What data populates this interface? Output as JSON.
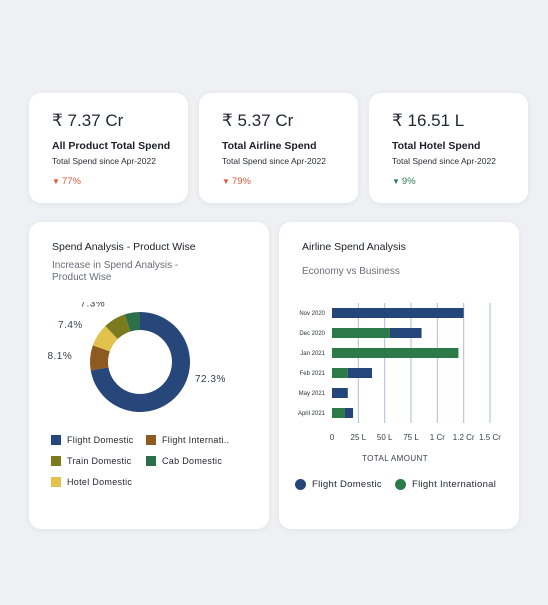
{
  "kpis": [
    {
      "amount": "₹ 7.37 Cr",
      "title": "All Product Total Spend",
      "subtitle": "Total Spend since Apr-2022",
      "delta": "77%",
      "direction": "down"
    },
    {
      "amount": "₹ 5.37 Cr",
      "title": "Total Airline Spend",
      "subtitle": "Total Spend since Apr-2022",
      "delta": "79%",
      "direction": "down"
    },
    {
      "amount": "₹ 16.51 L",
      "title": "Total Hotel Spend",
      "subtitle": "Total Spend since Apr-2022",
      "delta": "9%",
      "direction": "up"
    }
  ],
  "spend_panel": {
    "title": "Spend Analysis - Product Wise",
    "subtitle_line1": "Increase in Spend Analysis -",
    "subtitle_line2": "Product Wise"
  },
  "airline_panel": {
    "title": "Airline Spend Analysis",
    "subtitle": "Economy vs Business"
  },
  "colors": {
    "flight_domestic": "#27467a",
    "flight_international": "#8e5a22",
    "train_domestic": "#7b7a1f",
    "cab_domestic": "#2b7048",
    "hotel_domestic": "#e3c14d",
    "bar_flight_domestic": "#24467a",
    "bar_flight_international": "#2b7a48",
    "delta_down": "#e0573a",
    "delta_up": "#2e7d4f"
  },
  "chart_data": [
    {
      "type": "pie",
      "donut": true,
      "slices": [
        {
          "name": "Flight Domestic",
          "value": 72.3,
          "label": "72.3%",
          "color": "#27467a"
        },
        {
          "name": "Flight Internati..",
          "value": 8.1,
          "label": "8.1%",
          "color": "#8e5a22"
        },
        {
          "name": "Hotel Domestic",
          "value": 7.4,
          "label": "7.4%",
          "color": "#e3c14d"
        },
        {
          "name": "Train Domestic",
          "value": 7.3,
          "label": "7.3%",
          "color": "#7b7a1f"
        },
        {
          "name": "Cab Domestic",
          "value": 4.9,
          "label": "4.9%",
          "color": "#2b7048"
        }
      ],
      "legend": [
        "Flight Domestic",
        "Flight Internati..",
        "Train Domestic",
        "Cab Domestic",
        "Hotel Domestic"
      ],
      "legend_placement": "bottom"
    },
    {
      "type": "bar",
      "orientation": "horizontal",
      "stacked": true,
      "categories": [
        "Nov 2020",
        "Dec 2020",
        "Jan 2021",
        "Feb 2021",
        "May 2021",
        "April 2021"
      ],
      "series": [
        {
          "name": "Flight International",
          "values": [
            0,
            0.55,
            1.2,
            0.15,
            0,
            0.12
          ],
          "color": "#2b7a48"
        },
        {
          "name": "Flight Domestic",
          "values": [
            1.25,
            0.3,
            0,
            0.23,
            0.15,
            0.08
          ],
          "color": "#24467a"
        }
      ],
      "xlabel": "TOTAL AMOUNT",
      "x_ticks": [
        {
          "value": 0,
          "label": "0"
        },
        {
          "value": 0.25,
          "label": "25 L"
        },
        {
          "value": 0.5,
          "label": "50 L"
        },
        {
          "value": 0.75,
          "label": "75 L"
        },
        {
          "value": 1.0,
          "label": "1 Cr"
        },
        {
          "value": 1.25,
          "label": "1.2 Cr"
        },
        {
          "value": 1.5,
          "label": "1.5 Cr"
        }
      ],
      "xlim": [
        0,
        1.5
      ],
      "grid": true,
      "legend": [
        "Flight Domestic",
        "Flight International"
      ],
      "legend_placement": "bottom"
    }
  ]
}
